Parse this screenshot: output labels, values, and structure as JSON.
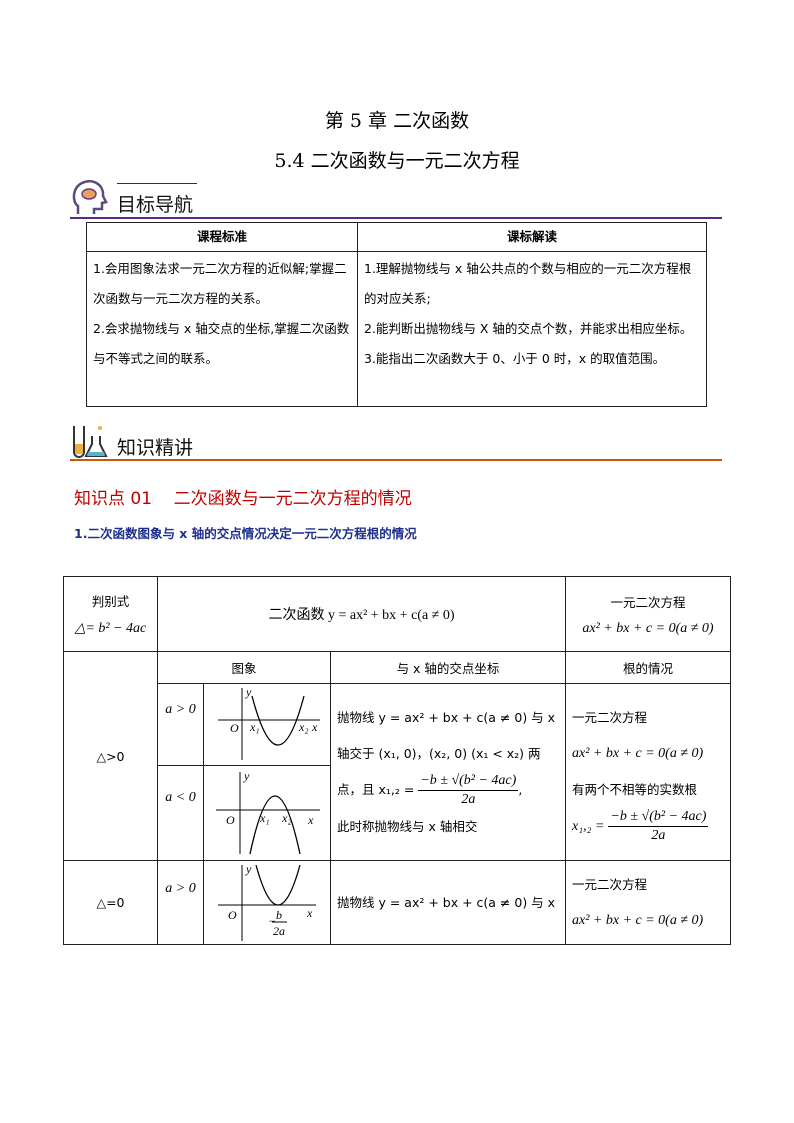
{
  "chapter_title": "第 5 章  二次函数",
  "section_title": "5.4 二次函数与一元二次方程",
  "section1": {
    "heading": "目标导航",
    "icon": "head-brain-icon",
    "color": "#5b2a86",
    "headers": [
      "课程标准",
      "课标解读"
    ],
    "col1": [
      "1.会用图象法求一元二次方程的近似解;掌握二次函数与一元二次方程的关系。",
      "2.会求抛物线与 x 轴交点的坐标,掌握二次函数与不等式之间的联系。"
    ],
    "col2": [
      "1.理解抛物线与 x 轴公共点的个数与相应的一元二次方程根的对应关系;",
      "2.能判断出抛物线与 X 轴的交点个数，并能求出相应坐标。",
      "3.能指出二次函数大于 0、小于 0 时，x 的取值范围。"
    ]
  },
  "section2": {
    "heading": "知识精讲",
    "icon": "lab-flask-icon",
    "color": "#c55a11"
  },
  "knowledge_point": "知识点 01    二次函数与一元二次方程的情况",
  "subheading": "1.二次函数图象与 x 轴的交点情况决定一元二次方程根的情况",
  "table": {
    "discriminant_label": "判别式",
    "discriminant_formula": "△= b² − 4ac",
    "function_header": "二次函数 y = ax² + bx + c(a ≠ 0)",
    "equation_header": "一元二次方程",
    "equation_formula": "ax² + bx + c = 0(a ≠ 0)",
    "sub_headers": [
      "图象",
      "与 x 轴的交点坐标",
      "根的情况"
    ],
    "row1": {
      "case": "△>0",
      "a_pos": "a > 0",
      "a_neg": "a < 0",
      "intersect": [
        "抛物线 y = ax² + bx + c(a ≠ 0) 与 x",
        "轴交于 (x₁, 0)，(x₂, 0) (x₁ < x₂) 两",
        "点，且 x₁,₂ =",
        "−b ± √(b² − 4ac)",
        "2a",
        ",",
        "此时称抛物线与 x 轴相交"
      ],
      "roots": [
        "一元二次方程",
        "ax² + bx + c = 0(a ≠ 0)",
        "有两个不相等的实数根",
        "x₁,₂ =",
        "−b ± √(b² − 4ac)",
        "2a"
      ]
    },
    "row2": {
      "case": "△=0",
      "a_pos": "a > 0",
      "intersect": "抛物线 y = ax² + bx + c(a ≠ 0) 与 x",
      "roots": [
        "一元二次方程",
        "ax² + bx + c = 0(a ≠ 0)"
      ],
      "vertex_num": "b",
      "vertex_den": "2a",
      "vertex_sign": "−"
    },
    "graph_labels": {
      "o": "O",
      "x": "x",
      "y": "y",
      "x1": "x₁",
      "x2": "x₂"
    }
  }
}
